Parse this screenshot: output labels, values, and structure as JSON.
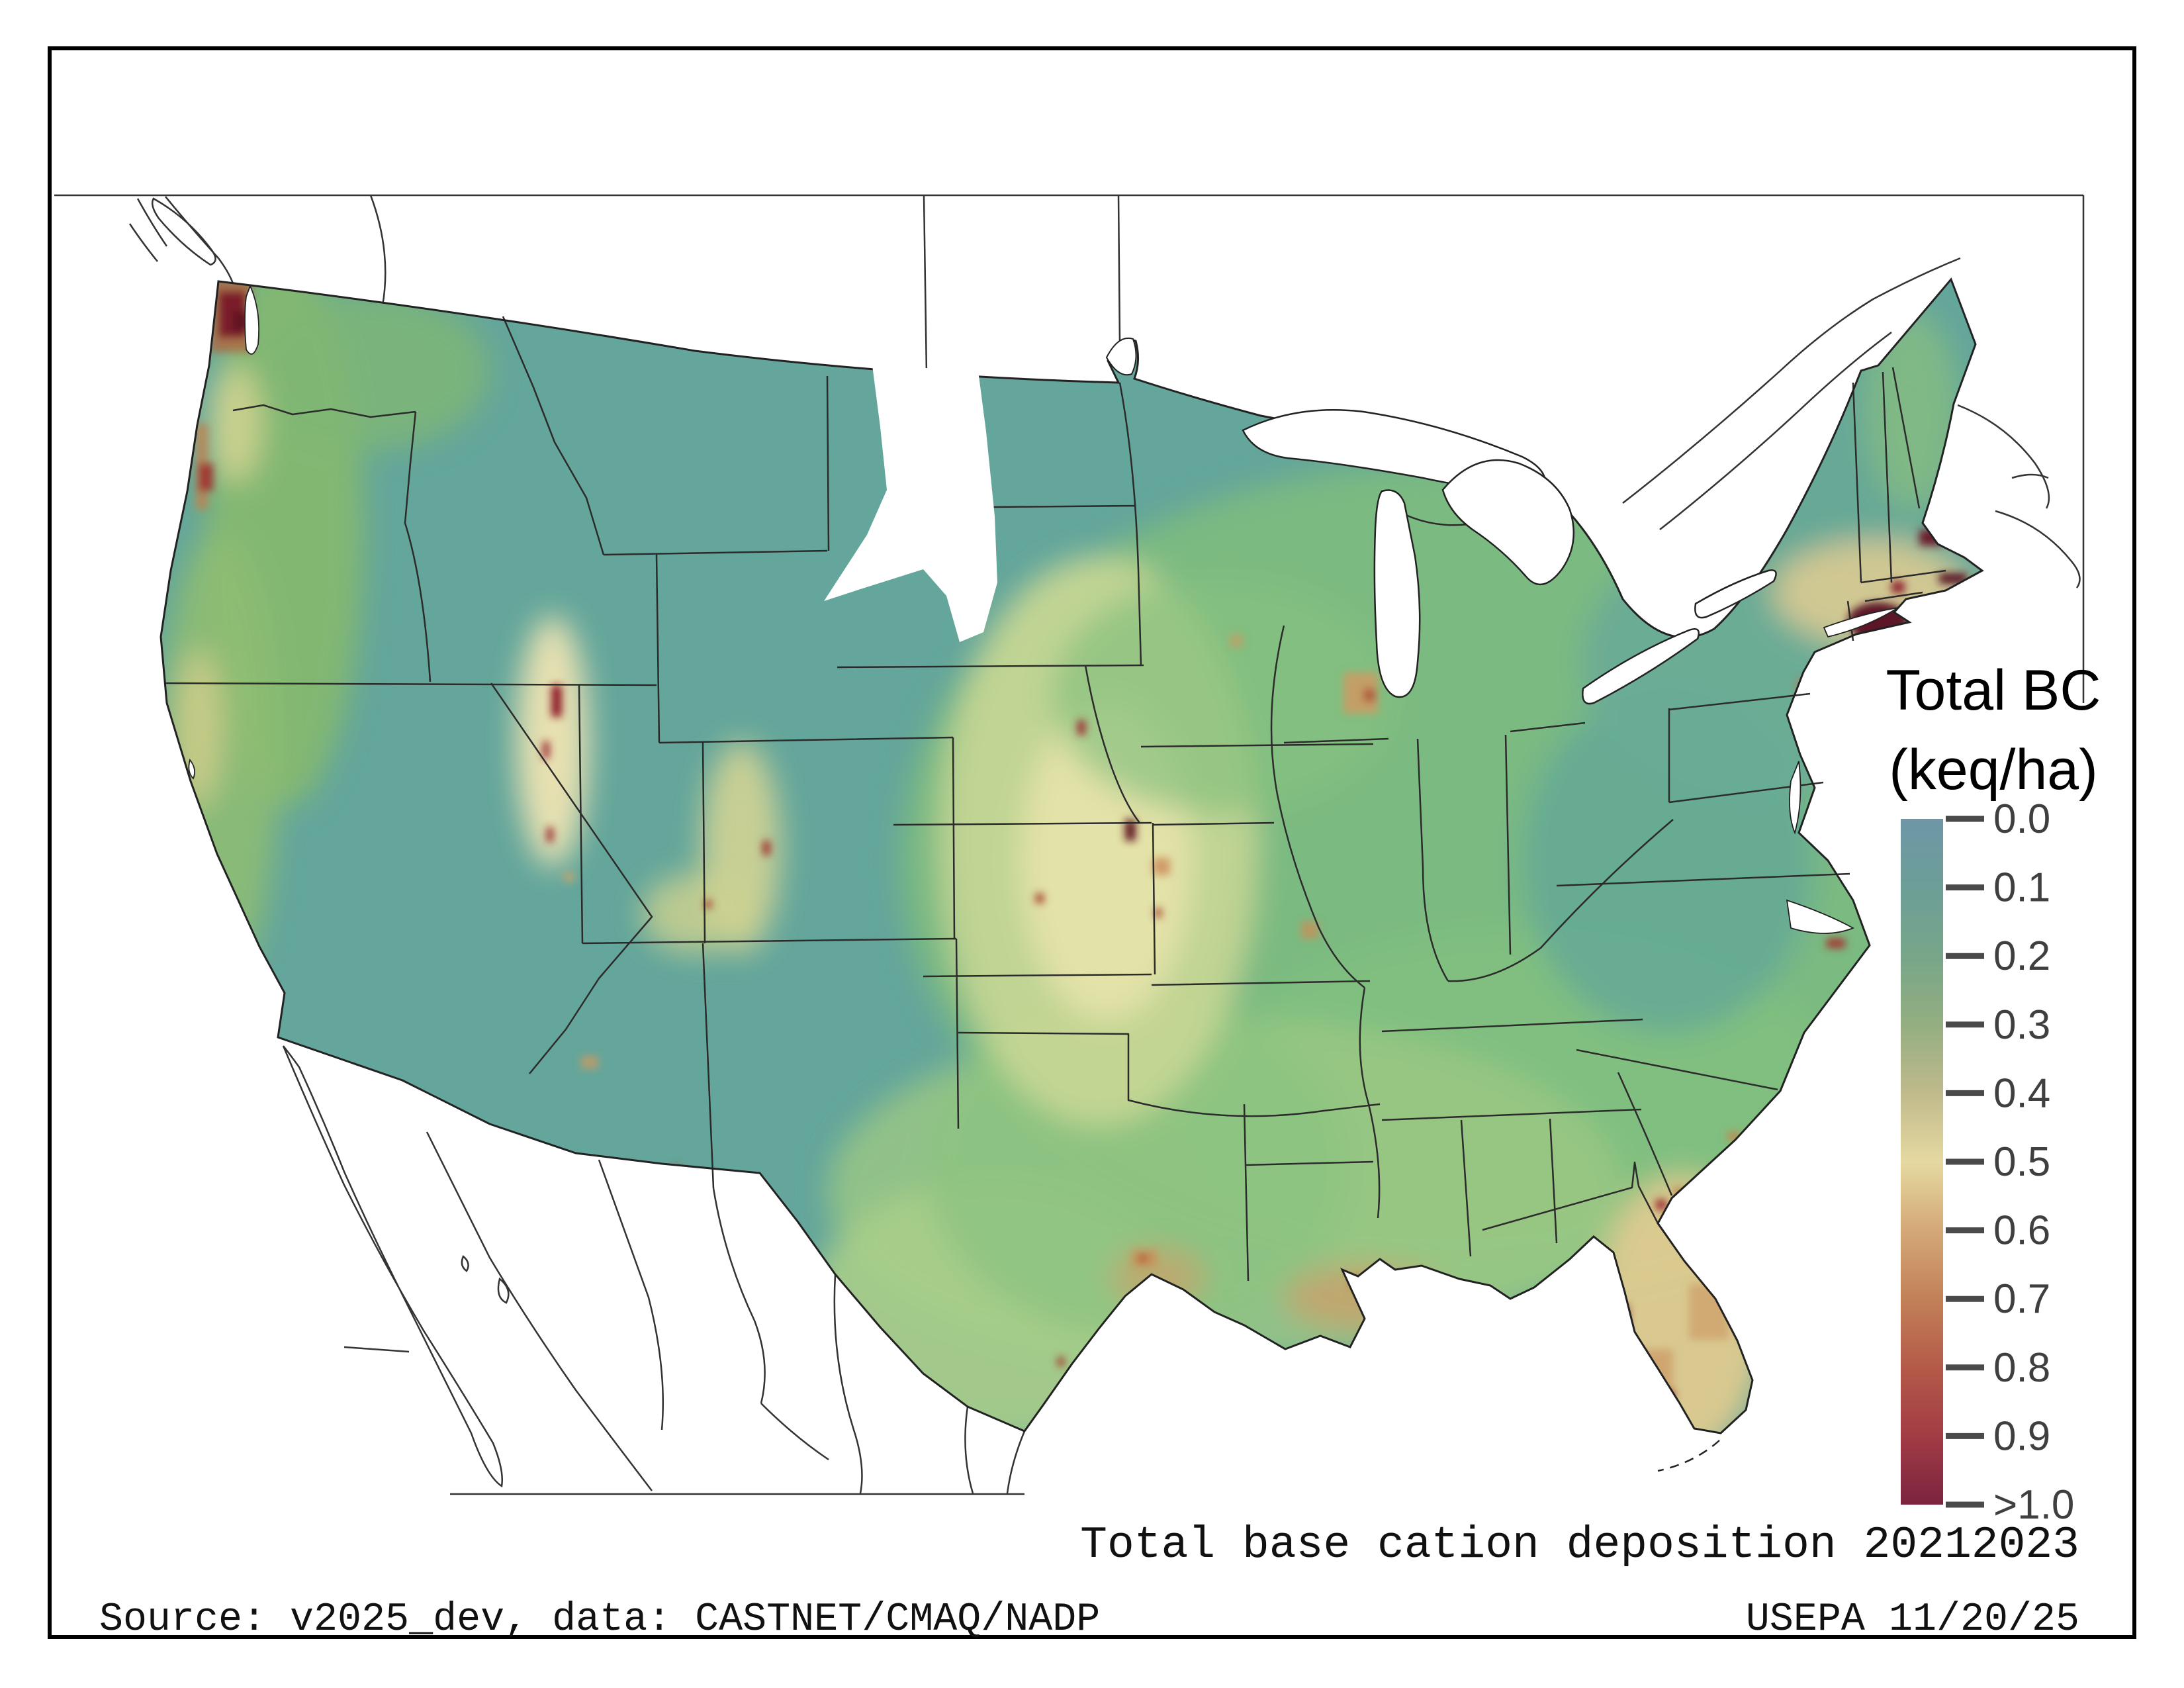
{
  "figure": {
    "caption": "Total base cation deposition 20212023",
    "source_line": "Source: v2025_dev, data: CASTNET/CMAQ/NADP",
    "credit_line": "USEPA 11/20/25",
    "frame_color": "#000000",
    "background": "#ffffff"
  },
  "legend": {
    "title_line1": "Total BC",
    "title_line2": "(keq/ha)",
    "tick_labels": [
      "0.0",
      "0.1",
      "0.2",
      "0.3",
      "0.4",
      "0.5",
      "0.6",
      "0.7",
      "0.8",
      "0.9",
      ">1.0"
    ],
    "tick_color": "#3f3f3f",
    "tick_mark_color": "#4a4a4a",
    "colors": [
      "#6e96a7",
      "#6d9e97",
      "#77a689",
      "#94ae81",
      "#c0ba8c",
      "#e5d9a0",
      "#d4a877",
      "#c28158",
      "#b45a49",
      "#a23c45",
      "#7b2340"
    ]
  },
  "chart_data": {
    "type": "heatmap",
    "title": "Total base cation deposition 20212023",
    "variable": "Total BC",
    "units": "keq/ha",
    "region": "Contiguous United States",
    "scale_min": 0.0,
    "scale_max": 1.0,
    "scale_ticks": [
      0.0,
      0.1,
      0.2,
      0.3,
      0.4,
      0.5,
      0.6,
      0.7,
      0.8,
      0.9,
      1.0
    ],
    "scale_top_label": "0.0",
    "scale_bottom_label": ">1.0",
    "colormap_stops": [
      "#6e96a7",
      "#6d9e97",
      "#77a689",
      "#94ae81",
      "#c0ba8c",
      "#e5d9a0",
      "#d4a877",
      "#c28158",
      "#b45a49",
      "#a23c45",
      "#7b2340"
    ],
    "legend_position": "right",
    "notes_visible_patterns": "low values (teal 0.0-0.2) across interior West and Northeast interior; moderate greens (0.2-0.4) Midwest and Southeast; pale khaki (~0.5) central Plains; high values (0.6->1.0) Florida peninsula, Gulf coast cities, Northeast urban corridor (NYC, NJ, Boston/Cape Cod), Seattle/Olympic area, Wasatch and Colorado mountain spots; missing-data white wedge over MT/ND/SD/WY"
  }
}
